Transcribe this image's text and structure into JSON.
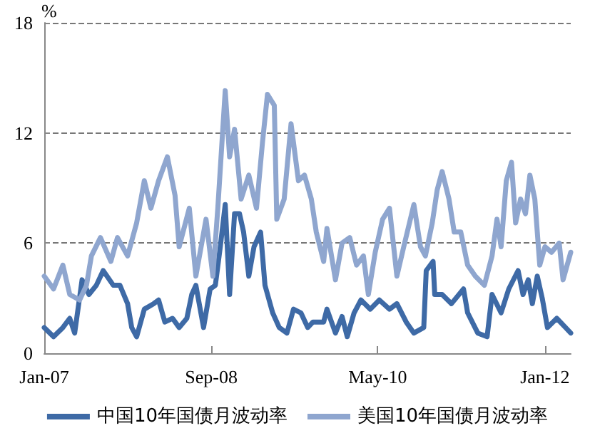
{
  "chart_data": {
    "type": "line",
    "ylabel": "%",
    "xlim": [
      "2007-01-01",
      "2012-04-04"
    ],
    "xticks": [
      {
        "value": "2007-01-01",
        "label": "Jan-07"
      },
      {
        "value": "2008-09-01",
        "label": "Sep-08"
      },
      {
        "value": "2010-05-01",
        "label": "May-10"
      },
      {
        "value": "2012-01-01",
        "label": "Jan-12"
      }
    ],
    "ylim": [
      0,
      18
    ],
    "yticks": [
      0,
      6,
      12,
      18
    ],
    "grid": "y",
    "legend": "bottom",
    "marker": "none",
    "line_style": "solid",
    "series": [
      {
        "name": "中国10年国债月波动率",
        "color": "#3e6aa6",
        "x": [
          "2007-01-01",
          "2007-02-04",
          "2007-03-10",
          "2007-04-04",
          "2007-04-22",
          "2007-05-19",
          "2007-06-13",
          "2007-07-10",
          "2007-08-04",
          "2007-09-10",
          "2007-10-04",
          "2007-11-01",
          "2007-11-16",
          "2007-12-04",
          "2008-01-01",
          "2008-02-04",
          "2008-02-22",
          "2008-03-16",
          "2008-04-13",
          "2008-05-07",
          "2008-06-04",
          "2008-06-22",
          "2008-07-07",
          "2008-08-04",
          "2008-08-28",
          "2008-09-16",
          "2008-10-04",
          "2008-10-22",
          "2008-11-07",
          "2008-11-25",
          "2008-12-13",
          "2008-12-28",
          "2009-01-16",
          "2009-02-04",
          "2009-02-28",
          "2009-03-16",
          "2009-04-13",
          "2009-05-07",
          "2009-06-04",
          "2009-06-28",
          "2009-07-25",
          "2009-08-19",
          "2009-09-07",
          "2009-10-16",
          "2009-10-28",
          "2009-11-28",
          "2009-12-22",
          "2010-01-10",
          "2010-02-04",
          "2010-03-01",
          "2010-04-04",
          "2010-05-07",
          "2010-06-13",
          "2010-07-10",
          "2010-08-13",
          "2010-09-10",
          "2010-10-16",
          "2010-10-25",
          "2010-11-19",
          "2010-11-25",
          "2010-12-22",
          "2011-01-25",
          "2011-03-10",
          "2011-03-25",
          "2011-05-01",
          "2011-06-04",
          "2011-06-22",
          "2011-07-25",
          "2011-08-22",
          "2011-09-25",
          "2011-10-13",
          "2011-11-01",
          "2011-11-16",
          "2011-12-04",
          "2011-12-22",
          "2012-01-10",
          "2012-02-13",
          "2012-03-16",
          "2012-04-04"
        ],
        "values": [
          1.4,
          0.9,
          1.4,
          1.9,
          1.1,
          4.0,
          3.2,
          3.7,
          4.5,
          3.7,
          3.7,
          2.7,
          1.4,
          0.9,
          2.4,
          2.7,
          2.9,
          1.7,
          1.9,
          1.4,
          1.9,
          3.2,
          3.7,
          1.4,
          3.5,
          3.7,
          5.8,
          8.1,
          3.2,
          7.6,
          7.6,
          6.6,
          4.2,
          5.8,
          6.6,
          3.7,
          2.2,
          1.4,
          1.1,
          2.4,
          2.2,
          1.4,
          1.7,
          1.7,
          2.4,
          1.1,
          2.0,
          0.9,
          2.2,
          2.9,
          2.4,
          2.9,
          2.4,
          2.7,
          1.7,
          1.1,
          1.4,
          4.5,
          5.0,
          3.2,
          3.2,
          2.7,
          3.5,
          2.2,
          1.1,
          0.9,
          3.2,
          2.2,
          3.5,
          4.5,
          3.2,
          4.0,
          2.7,
          4.2,
          3.0,
          1.4,
          1.9,
          1.4,
          1.1
        ]
      },
      {
        "name": "美国10年国债月波动率",
        "color": "#8fa6cf",
        "x": [
          "2007-01-01",
          "2007-02-04",
          "2007-03-10",
          "2007-04-04",
          "2007-05-10",
          "2007-06-04",
          "2007-06-22",
          "2007-07-25",
          "2007-09-01",
          "2007-09-25",
          "2007-11-01",
          "2007-12-04",
          "2008-01-01",
          "2008-01-25",
          "2008-02-22",
          "2008-03-25",
          "2008-04-22",
          "2008-05-07",
          "2008-06-13",
          "2008-07-07",
          "2008-08-13",
          "2008-09-07",
          "2008-09-25",
          "2008-10-22",
          "2008-11-07",
          "2008-11-25",
          "2008-12-19",
          "2009-01-16",
          "2009-02-13",
          "2009-03-07",
          "2009-03-25",
          "2009-04-19",
          "2009-04-28",
          "2009-05-25",
          "2009-06-19",
          "2009-07-16",
          "2009-08-07",
          "2009-09-01",
          "2009-09-19",
          "2009-10-16",
          "2009-10-28",
          "2009-11-28",
          "2009-12-22",
          "2010-01-19",
          "2010-02-13",
          "2010-03-10",
          "2010-03-28",
          "2010-04-22",
          "2010-05-19",
          "2010-06-13",
          "2010-07-10",
          "2010-08-04",
          "2010-09-10",
          "2010-10-04",
          "2010-10-22",
          "2010-11-16",
          "2010-12-04",
          "2010-12-22",
          "2011-01-16",
          "2011-02-04",
          "2011-02-28",
          "2011-03-25",
          "2011-04-22",
          "2011-05-25",
          "2011-06-22",
          "2011-07-10",
          "2011-07-25",
          "2011-08-13",
          "2011-09-01",
          "2011-09-16",
          "2011-10-04",
          "2011-10-22",
          "2011-11-07",
          "2011-11-25",
          "2011-12-13",
          "2012-01-01",
          "2012-01-25",
          "2012-02-22",
          "2012-03-07",
          "2012-04-04"
        ],
        "values": [
          4.2,
          3.5,
          4.8,
          3.2,
          2.9,
          3.7,
          5.3,
          6.3,
          5.0,
          6.3,
          5.3,
          7.1,
          9.4,
          7.9,
          9.4,
          10.7,
          8.6,
          5.8,
          7.9,
          4.2,
          7.3,
          4.2,
          7.9,
          14.3,
          10.7,
          12.2,
          8.4,
          9.7,
          7.9,
          11.5,
          14.1,
          13.5,
          7.3,
          8.4,
          12.5,
          9.4,
          9.7,
          8.4,
          6.6,
          5.0,
          6.8,
          4.0,
          6.0,
          6.3,
          4.8,
          5.3,
          3.2,
          5.5,
          7.3,
          7.9,
          4.2,
          5.8,
          8.1,
          5.8,
          5.3,
          7.1,
          8.9,
          9.9,
          8.4,
          6.6,
          6.6,
          4.8,
          4.2,
          3.7,
          5.3,
          7.3,
          5.8,
          9.4,
          10.4,
          7.1,
          8.4,
          7.6,
          9.7,
          8.4,
          4.8,
          5.8,
          5.5,
          6.0,
          4.0,
          5.5
        ]
      }
    ]
  }
}
